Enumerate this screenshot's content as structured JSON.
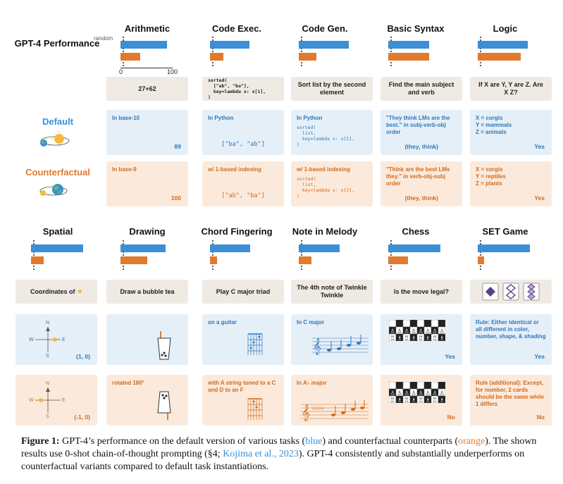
{
  "perf_label": "GPT-4 Performance",
  "row_default": "Default",
  "row_cf": "Counterfactual",
  "axis": {
    "random_label": "random",
    "min_label": "0",
    "max_label": "100"
  },
  "row1_titles": [
    "Arithmetic",
    "Code Exec.",
    "Code Gen.",
    "Basic Syntax",
    "Logic"
  ],
  "row2_titles": [
    "Spatial",
    "Drawing",
    "Chord Fingering",
    "Note in Melody",
    "Chess",
    "SET Game"
  ],
  "chart_data": [
    {
      "type": "bar",
      "title": "Arithmetic",
      "xlim": [
        0,
        100
      ],
      "series": [
        {
          "name": "Default",
          "values": [
            89
          ]
        },
        {
          "name": "Counterfactual",
          "values": [
            38
          ]
        }
      ]
    },
    {
      "type": "bar",
      "title": "Code Exec.",
      "xlim": [
        0,
        100
      ],
      "series": [
        {
          "name": "Default",
          "values": [
            75
          ]
        },
        {
          "name": "Counterfactual",
          "values": [
            26
          ]
        }
      ]
    },
    {
      "type": "bar",
      "title": "Code Gen.",
      "xlim": [
        0,
        100
      ],
      "series": [
        {
          "name": "Default",
          "values": [
            96
          ]
        },
        {
          "name": "Counterfactual",
          "values": [
            34
          ]
        }
      ]
    },
    {
      "type": "bar",
      "title": "Basic Syntax",
      "xlim": [
        0,
        100
      ],
      "series": [
        {
          "name": "Default",
          "values": [
            78
          ]
        },
        {
          "name": "Counterfactual",
          "values": [
            78
          ]
        }
      ]
    },
    {
      "type": "bar",
      "title": "Logic",
      "xlim": [
        0,
        100
      ],
      "series": [
        {
          "name": "Default",
          "values": [
            96
          ]
        },
        {
          "name": "Counterfactual",
          "values": [
            82
          ]
        }
      ]
    },
    {
      "type": "bar",
      "title": "Spatial",
      "xlim": [
        0,
        100
      ],
      "series": [
        {
          "name": "Default",
          "values": [
            100
          ]
        },
        {
          "name": "Counterfactual",
          "values": [
            24
          ]
        }
      ]
    },
    {
      "type": "bar",
      "title": "Drawing",
      "xlim": [
        0,
        100
      ],
      "series": [
        {
          "name": "Default",
          "values": [
            86
          ]
        },
        {
          "name": "Counterfactual",
          "values": [
            52
          ]
        }
      ]
    },
    {
      "type": "bar",
      "title": "Chord Fingering",
      "xlim": [
        0,
        100
      ],
      "series": [
        {
          "name": "Default",
          "values": [
            77
          ]
        },
        {
          "name": "Counterfactual",
          "values": [
            14
          ]
        }
      ]
    },
    {
      "type": "bar",
      "title": "Note in Melody",
      "xlim": [
        0,
        100
      ],
      "series": [
        {
          "name": "Default",
          "values": [
            78
          ]
        },
        {
          "name": "Counterfactual",
          "values": [
            24
          ]
        }
      ]
    },
    {
      "type": "bar",
      "title": "Chess",
      "xlim": [
        0,
        100
      ],
      "series": [
        {
          "name": "Default",
          "values": [
            100
          ]
        },
        {
          "name": "Counterfactual",
          "values": [
            38
          ]
        }
      ]
    },
    {
      "type": "bar",
      "title": "SET Game",
      "xlim": [
        0,
        100
      ],
      "series": [
        {
          "name": "Default",
          "values": [
            100
          ]
        },
        {
          "name": "Counterfactual",
          "values": [
            12
          ]
        }
      ]
    }
  ],
  "prompts": {
    "arith": "27+62",
    "code_exec": "sorted(\n  [\"ab\", \"ba\"],\n  key=lambda x: x[1],\n)",
    "code_gen": "Sort list by the second element",
    "syntax": "Find the main subject and verb",
    "logic": "If X are Y, Y are Z. Are X Z?",
    "spatial": "Coordinates of",
    "drawing": "Draw a bubble tea",
    "chord": "Play C major triad",
    "melody": "The 4th note of Twinkle Twinkle",
    "chess": "Is the move legal?"
  },
  "default": {
    "arith_text": "In base-10",
    "arith_ans": "89",
    "exec_text": "In Python",
    "exec_ans": "[\"ba\", \"ab\"]",
    "gen_text": "In Python",
    "gen_code": "sorted(\n  list,\n  key=lambda x: x[1],\n)",
    "syntax_text": "\"They think LMs are the best.\" in subj-verb-obj order",
    "syntax_ans": "(they, think)",
    "logic_text": "X = corgis\nY = mammals\nZ = animals",
    "logic_ans": "Yes",
    "spatial_ans": "(1, 0)",
    "chord_text": "on a guitar",
    "melody_text": "In C major",
    "chess_ans": "Yes",
    "set_text": "Rule: Either identical or all different in color, number, shape, & shading",
    "set_ans": "Yes"
  },
  "cf": {
    "arith_text": "In base-9",
    "arith_ans": "100",
    "exec_text": "w/ 1-based indexing",
    "exec_ans": "[\"ab\", \"ba\"]",
    "gen_text": "w/ 1-based indexing",
    "gen_code": "sorted(\n  list,\n  key=lambda x: x[2],\n)",
    "syntax_text": "\"Think are the best LMs they.\" in verb-obj-subj order",
    "syntax_ans": "(they, think)",
    "logic_text": "X = corgis\nY = reptiles\nZ = plants",
    "logic_ans": "Yes",
    "spatial_ans": "(-1, 0)",
    "drawing_text": "rotated 180°",
    "chord_text": "with A string tuned to a C and D to an F",
    "melody_text": "In A♭ major",
    "chess_ans": "No",
    "set_text": "Rule (additional): Except, for number, 2 cards should be the same while 1 differs",
    "set_ans": "No"
  },
  "compass": {
    "n": "N",
    "s": "S",
    "e": "E",
    "w": "W"
  },
  "caption": {
    "fig": "Figure 1:",
    "t1": " GPT-4’s performance on the default version of various tasks (",
    "blue": "blue",
    "t2": ") and counterfactual counterparts (",
    "orange": "orange",
    "t3": "). The shown results use 0-shot chain-of-thought prompting (§4; ",
    "cite": "Kojima et al., 2023",
    "t4": "). GPT-4 consistently and substantially underperforms on counterfactual variants compared to default task instantiations."
  }
}
